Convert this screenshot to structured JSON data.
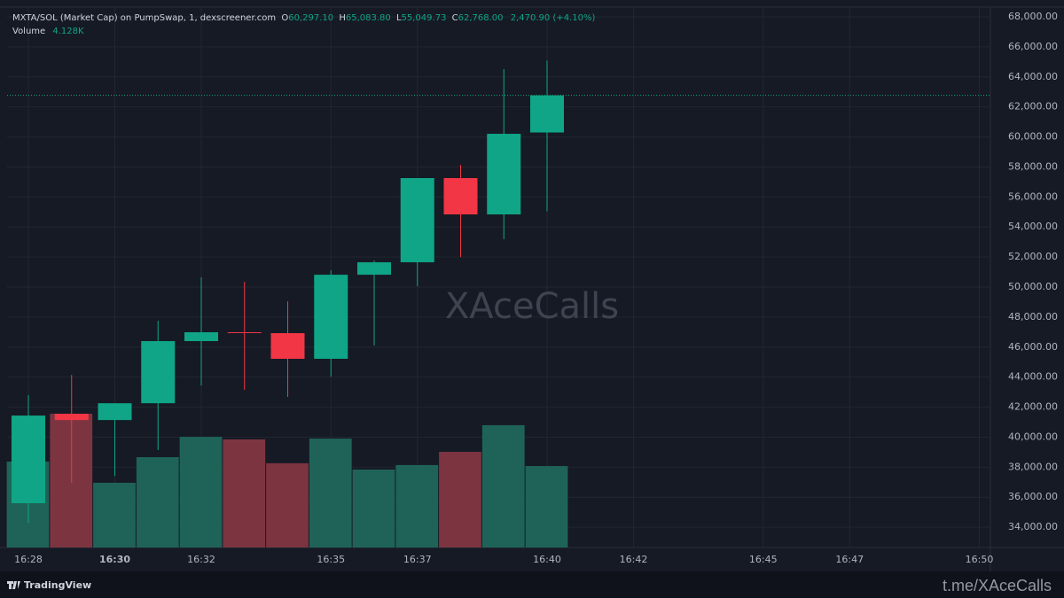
{
  "chart_data": {
    "type": "candlestick",
    "title": "MXTA/SOL (Market Cap) on PumpSwap, 1, dexscreener.com",
    "header": {
      "open_label": "O",
      "open": "60,297.10",
      "high_label": "H",
      "high": "65,083.80",
      "low_label": "L",
      "low": "55,049.73",
      "close_label": "C",
      "close": "62,768.00",
      "change": "2,470.90 (+4.10%)",
      "volume_label": "Volume",
      "volume": "4.128K"
    },
    "categories": [
      "16:28",
      null,
      "16:30",
      null,
      "16:32",
      null,
      null,
      "16:35",
      null,
      "16:37",
      null,
      null,
      "16:40",
      null,
      "16:42",
      null,
      null,
      "16:45",
      null,
      "16:47",
      null,
      null,
      "16:50"
    ],
    "open": [
      35600,
      41560,
      41140,
      42260,
      46400,
      46990,
      46930,
      45220,
      50820,
      51650,
      57260,
      54840,
      60297.1,
      null,
      null,
      null,
      null,
      null,
      null,
      null,
      null,
      null,
      null
    ],
    "high": [
      42800,
      44150,
      42260,
      47750,
      50650,
      50350,
      49050,
      51120,
      51770,
      57260,
      58140,
      64520,
      65083.8,
      null,
      null,
      null,
      null,
      null,
      null,
      null,
      null,
      null,
      null
    ],
    "low": [
      34300,
      36950,
      37420,
      39140,
      43440,
      43150,
      42680,
      44030,
      46100,
      50060,
      52000,
      53190,
      55049.73,
      null,
      null,
      null,
      null,
      null,
      null,
      null,
      null,
      null,
      null
    ],
    "close": [
      41440,
      41140,
      42260,
      46400,
      46990,
      46960,
      45220,
      50820,
      51650,
      57260,
      54840,
      60210,
      62768,
      null,
      null,
      null,
      null,
      null,
      null,
      null,
      null,
      null,
      null
    ],
    "volume": [
      4355,
      6780,
      3280,
      4580,
      5610,
      5480,
      4270,
      5520,
      3950,
      4180,
      4850,
      6200,
      4128,
      null,
      null,
      null,
      null,
      null,
      null,
      null,
      null,
      null,
      null
    ],
    "up_color": "#0fa586",
    "down_color": "#f23645",
    "volume_up_color": "#1f6358",
    "volume_down_color": "#7c3540",
    "ylim": [
      32650,
      68650
    ],
    "yticks": [
      {
        "value": 34000,
        "label": "34,000.00"
      },
      {
        "value": 36000,
        "label": "36,000.00"
      },
      {
        "value": 38000,
        "label": "38,000.00"
      },
      {
        "value": 40000,
        "label": "40,000.00"
      },
      {
        "value": 42000,
        "label": "42,000.00"
      },
      {
        "value": 44000,
        "label": "44,000.00"
      },
      {
        "value": 46000,
        "label": "46,000.00"
      },
      {
        "value": 48000,
        "label": "48,000.00"
      },
      {
        "value": 50000,
        "label": "50,000.00"
      },
      {
        "value": 52000,
        "label": "52,000.00"
      },
      {
        "value": 54000,
        "label": "54,000.00"
      },
      {
        "value": 56000,
        "label": "56,000.00"
      },
      {
        "value": 58000,
        "label": "58,000.00"
      },
      {
        "value": 60000,
        "label": "60,000.00"
      },
      {
        "value": 62000,
        "label": "62,000.00"
      },
      {
        "value": 64000,
        "label": "64,000.00"
      },
      {
        "value": 66000,
        "label": "66,000.00"
      },
      {
        "value": 68000,
        "label": "68,000.00"
      }
    ],
    "grid": true,
    "last_price_line": true,
    "watermark": "XAceCalls",
    "brand": "TradingView",
    "footer": "t.me/XAceCalls"
  }
}
